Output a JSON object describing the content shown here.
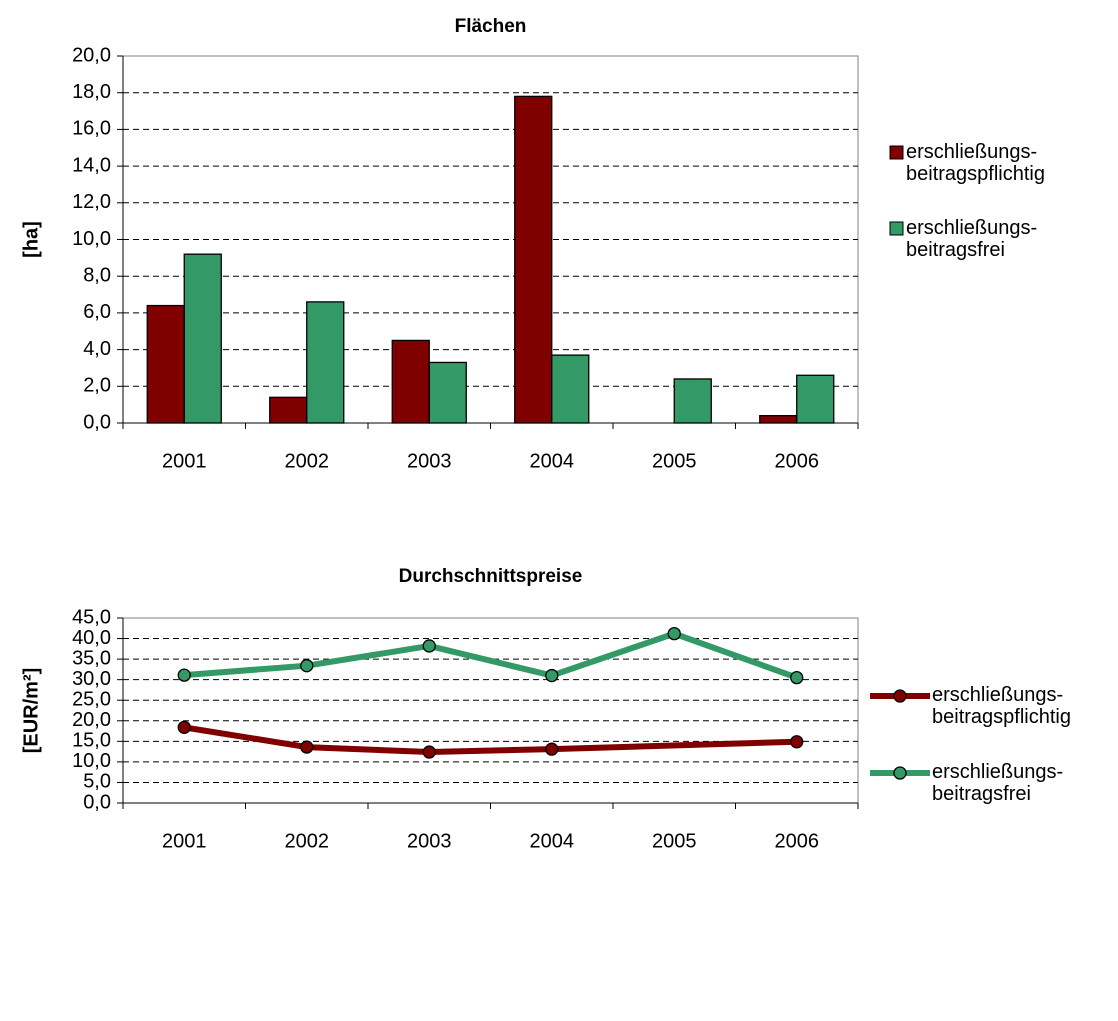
{
  "chart_data": [
    {
      "type": "bar",
      "title": "Flächen",
      "ylabel": "[ha]",
      "categories": [
        "2001",
        "2002",
        "2003",
        "2004",
        "2005",
        "2006"
      ],
      "series": [
        {
          "name": "erschließungs-beitragspflichtig",
          "color": "#800000",
          "values": [
            6.4,
            1.4,
            4.5,
            17.8,
            null,
            0.4
          ]
        },
        {
          "name": "erschließungs-beitragsfrei",
          "color": "#339966",
          "values": [
            9.2,
            6.6,
            3.3,
            3.7,
            2.4,
            2.6
          ]
        }
      ],
      "ylim": [
        0,
        20
      ],
      "yticks": [
        {
          "value": 0,
          "label": "0,0"
        },
        {
          "value": 2,
          "label": "2,0"
        },
        {
          "value": 4,
          "label": "4,0"
        },
        {
          "value": 6,
          "label": "6,0"
        },
        {
          "value": 8,
          "label": "8,0"
        },
        {
          "value": 10,
          "label": "10,0"
        },
        {
          "value": 12,
          "label": "12,0"
        },
        {
          "value": 14,
          "label": "14,0"
        },
        {
          "value": 16,
          "label": "16,0"
        },
        {
          "value": 18,
          "label": "18,0"
        },
        {
          "value": 20,
          "label": "20,0"
        }
      ],
      "grid": true,
      "legend": "right"
    },
    {
      "type": "line",
      "title": "Durchschnittspreise",
      "ylabel": "[EUR/m²]",
      "categories": [
        "2001",
        "2002",
        "2003",
        "2004",
        "2005",
        "2006"
      ],
      "series": [
        {
          "name": "erschließungs-beitragspflichtig",
          "color": "#800000",
          "values": [
            18.4,
            13.6,
            12.4,
            13.1,
            null,
            14.9
          ]
        },
        {
          "name": "erschließungs-beitragsfrei",
          "color": "#339966",
          "values": [
            31.1,
            33.4,
            38.2,
            31.0,
            41.2,
            30.5
          ]
        }
      ],
      "ylim": [
        0,
        45
      ],
      "yticks": [
        {
          "value": 0,
          "label": "0,0"
        },
        {
          "value": 5,
          "label": "5,0"
        },
        {
          "value": 10,
          "label": "10,0"
        },
        {
          "value": 15,
          "label": "15,0"
        },
        {
          "value": 20,
          "label": "20,0"
        },
        {
          "value": 25,
          "label": "25,0"
        },
        {
          "value": 30,
          "label": "30,0"
        },
        {
          "value": 35,
          "label": "35,0"
        },
        {
          "value": 40,
          "label": "40,0"
        },
        {
          "value": 45,
          "label": "45,0"
        }
      ],
      "grid": true,
      "legend": "right",
      "span_gaps": true
    }
  ]
}
